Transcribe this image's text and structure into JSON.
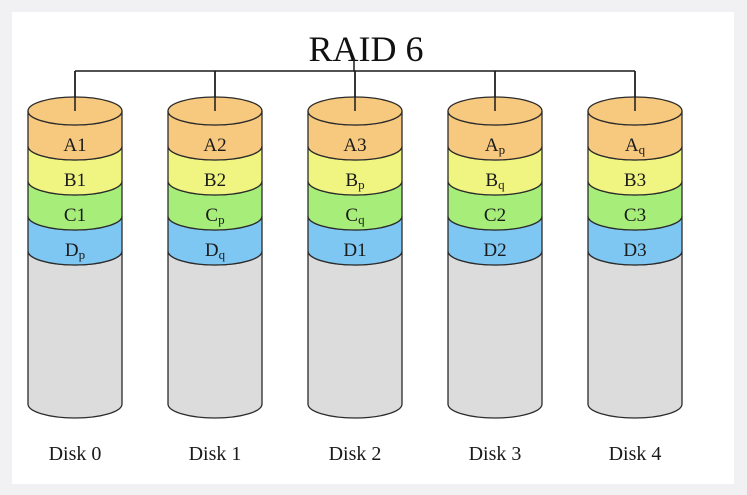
{
  "title": "RAID 6",
  "colors": {
    "A": "#f7c97e",
    "B": "#f0f581",
    "C": "#a6ee79",
    "D": "#7fc7f3",
    "empty": "#dcdcdc",
    "stroke": "#2b2b2b",
    "line": "#1a1a1a"
  },
  "disks": [
    {
      "name": "Disk 0",
      "blocks": [
        {
          "base": "A",
          "sub": "1",
          "type": "A"
        },
        {
          "base": "B",
          "sub": "1",
          "type": "B"
        },
        {
          "base": "C",
          "sub": "1",
          "type": "C"
        },
        {
          "base": "D",
          "sub": "p",
          "type": "D"
        }
      ]
    },
    {
      "name": "Disk 1",
      "blocks": [
        {
          "base": "A",
          "sub": "2",
          "type": "A"
        },
        {
          "base": "B",
          "sub": "2",
          "type": "B"
        },
        {
          "base": "C",
          "sub": "p",
          "type": "C"
        },
        {
          "base": "D",
          "sub": "q",
          "type": "D"
        }
      ]
    },
    {
      "name": "Disk 2",
      "blocks": [
        {
          "base": "A",
          "sub": "3",
          "type": "A"
        },
        {
          "base": "B",
          "sub": "p",
          "type": "B"
        },
        {
          "base": "C",
          "sub": "q",
          "type": "C"
        },
        {
          "base": "D",
          "sub": "1",
          "type": "D"
        }
      ]
    },
    {
      "name": "Disk 3",
      "blocks": [
        {
          "base": "A",
          "sub": "p",
          "type": "A"
        },
        {
          "base": "B",
          "sub": "q",
          "type": "B"
        },
        {
          "base": "C",
          "sub": "2",
          "type": "C"
        },
        {
          "base": "D",
          "sub": "2",
          "type": "D"
        }
      ]
    },
    {
      "name": "Disk 4",
      "blocks": [
        {
          "base": "A",
          "sub": "q",
          "type": "A"
        },
        {
          "base": "B",
          "sub": "3",
          "type": "B"
        },
        {
          "base": "C",
          "sub": "3",
          "type": "C"
        },
        {
          "base": "D",
          "sub": "3",
          "type": "D"
        }
      ]
    }
  ]
}
